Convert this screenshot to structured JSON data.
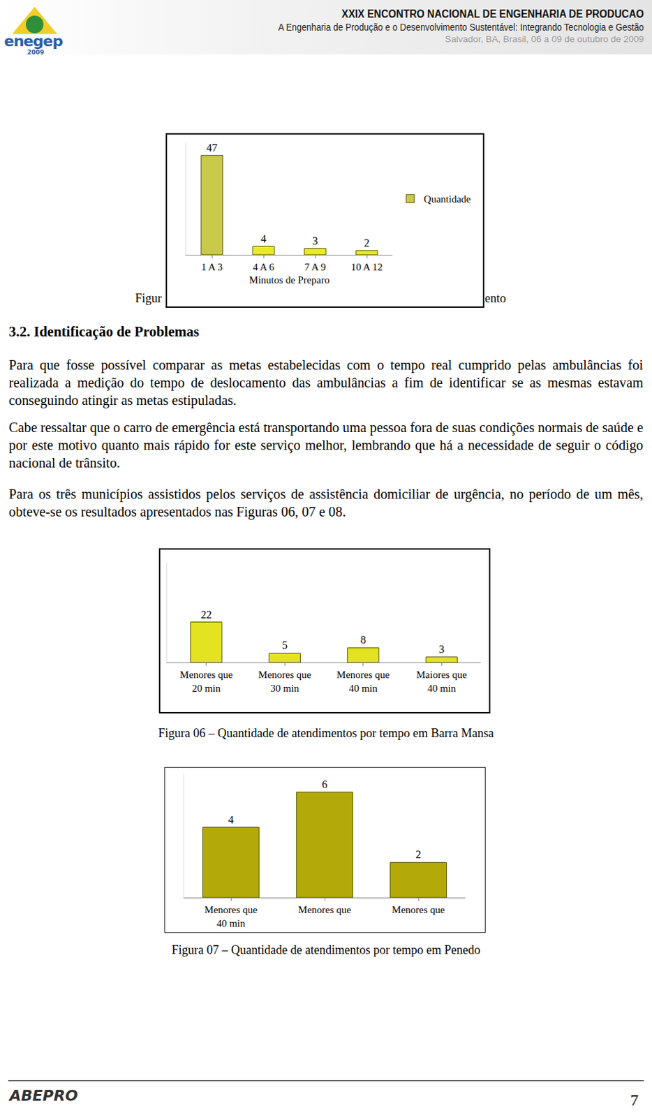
{
  "header": {
    "logo": "enegep",
    "logo_year": "2009",
    "title": "XXIX ENCONTRO NACIONAL DE ENGENHARIA DE PRODUCAO",
    "subtitle": "A Engenharia de Produção e o Desenvolvimento Sustentável: Integrando Tecnologia e Gestão",
    "place_date": "Salvador, BA, Brasil, 06 a 09 de outubro de 2009"
  },
  "chart_data": [
    {
      "type": "bar",
      "categories": [
        "1 A 3",
        "4 A 6",
        "7 A 9",
        "10 A 12"
      ],
      "x_label": "Minutos de Preparo",
      "series": [
        {
          "name": "Quantidade",
          "values": [
            47,
            4,
            3,
            2
          ],
          "colors": [
            "#c9c94a",
            "#eaea2a",
            "#eaea2a",
            "#eaea2a"
          ]
        }
      ],
      "ylim": [
        0,
        53
      ],
      "yticks": [],
      "grid": false,
      "legend": "right",
      "data_labels": true,
      "tick_labels": "x",
      "caption_fragments": [
        "Figur",
        "mento"
      ]
    },
    {
      "type": "bar",
      "categories": [
        "Menores que\n20 min",
        "Menores que\n30 min",
        "Menores que\n40 min",
        "Maiores que\n40 min"
      ],
      "values": [
        22,
        5,
        8,
        3
      ],
      "color": "#e3e322",
      "ylim": [
        0,
        54
      ],
      "yticks": [],
      "grid": false,
      "data_labels": true,
      "tick_labels": "x",
      "caption": "Figura 06 – Quantidade de atendimentos por tempo em Barra Mansa"
    },
    {
      "type": "bar",
      "categories": [
        "Menores que\n40 min",
        "Menores que",
        "Menores que"
      ],
      "values": [
        4,
        6,
        2
      ],
      "color": "#b3aa0a",
      "ylim": [
        0,
        7
      ],
      "yticks": [],
      "grid": false,
      "data_labels": true,
      "tick_labels": "x",
      "caption": "Figura 07 – Quantidade de atendimentos por tempo em Penedo"
    }
  ],
  "section": {
    "heading": "3.2. Identificação de Problemas",
    "paragraphs": [
      "Para que fosse possível comparar as metas estabelecidas com o tempo real cumprido pelas ambulâncias foi realizada a medição do tempo de deslocamento das ambulâncias a fim de identificar se as mesmas estavam conseguindo atingir as metas estipuladas.",
      "Cabe ressaltar que o carro de emergência está transportando uma pessoa fora de suas condições normais de saúde e por este motivo quanto mais rápido for este serviço melhor, lembrando que há a necessidade de seguir o código nacional de trânsito.",
      "Para os três municípios assistidos pelos serviços de assistência domiciliar de urgência, no período de um mês, obteve-se os resultados apresentados nas Figuras 06, 07 e 08."
    ]
  },
  "footer": {
    "logo": "ABEPRO",
    "page": "7"
  }
}
